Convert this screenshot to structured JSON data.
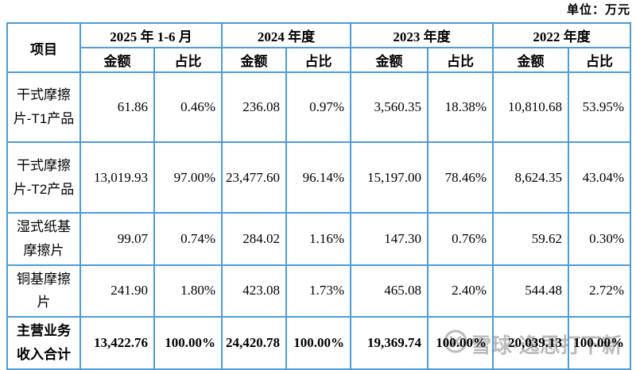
{
  "unit_label": "单位：万元",
  "table": {
    "item_header": "项目",
    "col_groups": [
      {
        "label": "2025 年 1-6 月"
      },
      {
        "label": "2024 年度"
      },
      {
        "label": "2023 年度"
      },
      {
        "label": "2022 年度"
      }
    ],
    "sub_headers": {
      "amount": "金额",
      "ratio": "占比"
    },
    "rows": [
      {
        "label": "干式摩擦片-T1产品",
        "values": [
          "61.86",
          "0.46%",
          "236.08",
          "0.97%",
          "3,560.35",
          "18.38%",
          "10,810.68",
          "53.95%"
        ],
        "bold": false
      },
      {
        "label": "干式摩擦片-T2产品",
        "values": [
          "13,019.93",
          "97.00%",
          "23,477.60",
          "96.14%",
          "15,197.00",
          "78.46%",
          "8,624.35",
          "43.04%"
        ],
        "bold": false
      },
      {
        "label": "湿式纸基摩擦片",
        "values": [
          "99.07",
          "0.74%",
          "284.02",
          "1.16%",
          "147.30",
          "0.76%",
          "59.62",
          "0.30%"
        ],
        "bold": false
      },
      {
        "label": "铜基摩擦片",
        "values": [
          "241.90",
          "1.80%",
          "423.08",
          "1.73%",
          "465.08",
          "2.40%",
          "544.48",
          "2.72%"
        ],
        "bold": false
      },
      {
        "label": "主营业务收入合计",
        "values": [
          "13,422.76",
          "100.00%",
          "24,420.78",
          "100.00%",
          "19,369.74",
          "100.00%",
          "20,039.13",
          "100.00%"
        ],
        "bold": true
      }
    ]
  },
  "watermark": {
    "text": "雪球·逸思打下新",
    "logo": "xueqiu-circle-logo"
  },
  "colors": {
    "border": "#4f9bd5",
    "text": "#000000",
    "watermark_gray": "#969696"
  }
}
